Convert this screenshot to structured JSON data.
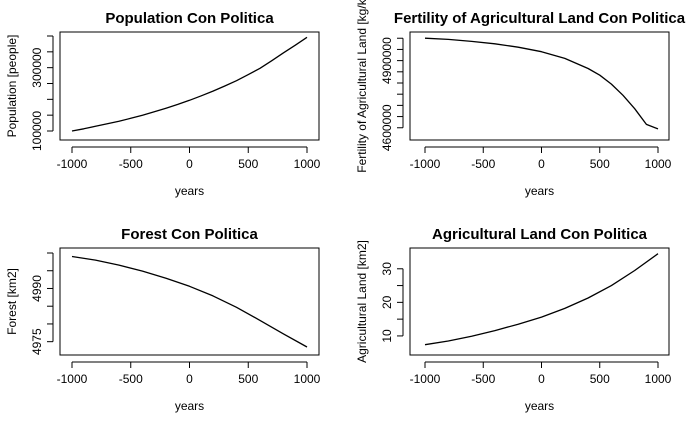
{
  "chart_data": [
    {
      "type": "line",
      "title": "Population Con Politica",
      "xlabel": "years",
      "ylabel": "Population [people]",
      "xlim": [
        -1000,
        1000
      ],
      "ylim": [
        100000,
        400000
      ],
      "xticks": [
        -1000,
        -500,
        0,
        500,
        1000
      ],
      "yticks": [
        100000,
        300000
      ],
      "ytick_labels": [
        "100000",
        "300000"
      ],
      "grid": false,
      "series": [
        {
          "x": [
            -1000,
            -900,
            -800,
            -700,
            -600,
            -500,
            -400,
            -300,
            -200,
            -100,
            0,
            100,
            200,
            300,
            400,
            500,
            600,
            700,
            800,
            900,
            1000
          ],
          "values": [
            100000,
            107000,
            115000,
            123000,
            131000,
            140000,
            150000,
            161000,
            172000,
            184000,
            197000,
            211000,
            226000,
            242000,
            259000,
            278000,
            298000,
            322000,
            347000,
            371000,
            396000
          ]
        }
      ]
    },
    {
      "type": "line",
      "title": "Fertility of Agricultural Land Con Politica",
      "xlabel": "years",
      "ylabel": "Fertility of Agricultural Land [kg/k",
      "xlim": [
        -1000,
        1000
      ],
      "ylim": [
        4590000,
        5010000
      ],
      "xticks": [
        -1000,
        -500,
        0,
        500,
        1000
      ],
      "yticks": [
        4600000,
        4900000
      ],
      "ytick_labels": [
        "4600000",
        "4900000"
      ],
      "grid": false,
      "series": [
        {
          "x": [
            -1000,
            -800,
            -600,
            -400,
            -200,
            0,
            200,
            400,
            500,
            600,
            700,
            800,
            900,
            1000
          ],
          "values": [
            5000000,
            4995000,
            4986000,
            4975000,
            4960000,
            4940000,
            4910000,
            4865000,
            4835000,
            4795000,
            4745000,
            4685000,
            4615000,
            4595000
          ]
        }
      ]
    },
    {
      "type": "line",
      "title": "Forest Con Politica",
      "xlabel": "years",
      "ylabel": "Forest [km2]",
      "xlim": [
        -1000,
        1000
      ],
      "ylim": [
        4973.5,
        5000
      ],
      "xticks": [
        -1000,
        -500,
        0,
        500,
        1000
      ],
      "yticks": [
        4975,
        4990
      ],
      "ytick_labels": [
        "4975",
        "4990"
      ],
      "grid": false,
      "series": [
        {
          "x": [
            -1000,
            -800,
            -600,
            -400,
            -200,
            0,
            200,
            400,
            600,
            800,
            1000
          ],
          "values": [
            4999,
            4998,
            4996.6,
            4994.9,
            4992.9,
            4990.6,
            4987.9,
            4984.7,
            4981,
            4977.2,
            4973.5
          ]
        }
      ]
    },
    {
      "type": "line",
      "title": "Agricultural Land Con Politica",
      "xlabel": "years",
      "ylabel": "Agricultural Land [km2]",
      "xlim": [
        -1000,
        1000
      ],
      "ylim": [
        7,
        35
      ],
      "xticks": [
        -1000,
        -500,
        0,
        500,
        1000
      ],
      "yticks": [
        10,
        20,
        30
      ],
      "ytick_labels": [
        "10",
        "20",
        "30"
      ],
      "grid": false,
      "series": [
        {
          "x": [
            -1000,
            -800,
            -600,
            -400,
            -200,
            0,
            200,
            400,
            600,
            800,
            1000
          ],
          "values": [
            7.4,
            8.5,
            9.9,
            11.6,
            13.5,
            15.6,
            18.2,
            21.3,
            25.0,
            29.5,
            34.5
          ]
        }
      ]
    }
  ]
}
